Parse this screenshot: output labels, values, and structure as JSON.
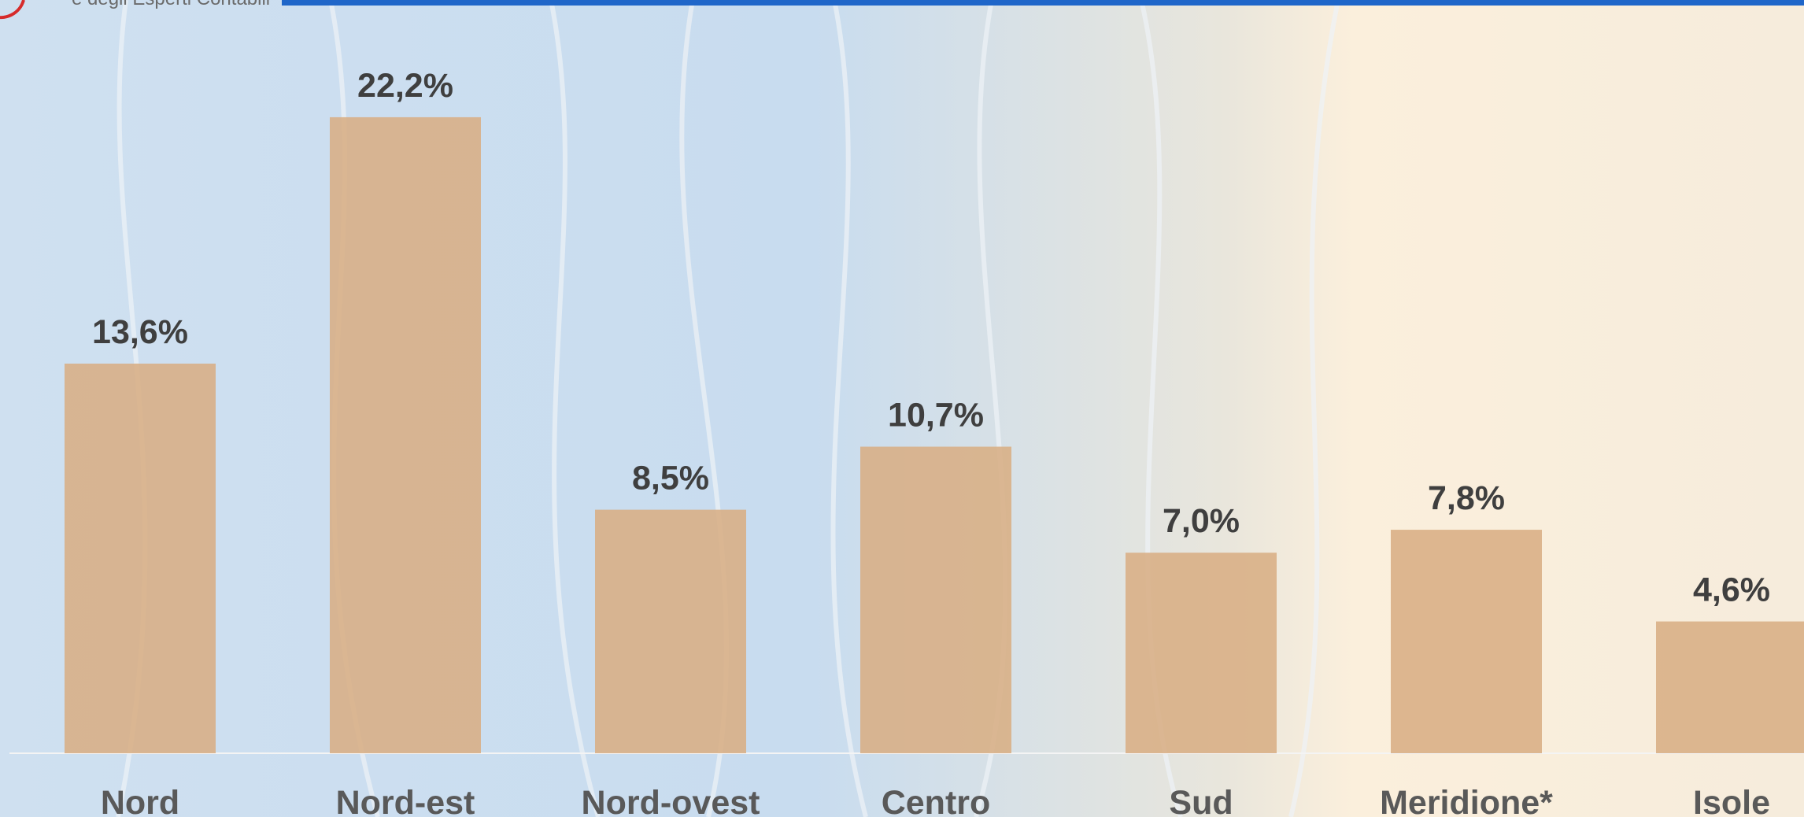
{
  "header": {
    "logo_text": "e degli Esperti Contabili"
  },
  "chart_data": {
    "type": "bar",
    "categories": [
      "Nord",
      "Nord-est",
      "Nord-ovest",
      "Centro",
      "Sud",
      "Meridione*",
      "Isole"
    ],
    "values": [
      13.6,
      22.2,
      8.5,
      10.7,
      7.0,
      7.8,
      4.6
    ],
    "value_labels": [
      "13,6%",
      "22,2%",
      "8,5%",
      "10,7%",
      "7,0%",
      "7,8%",
      "4,6%"
    ],
    "color": "#d8ae84"
  }
}
